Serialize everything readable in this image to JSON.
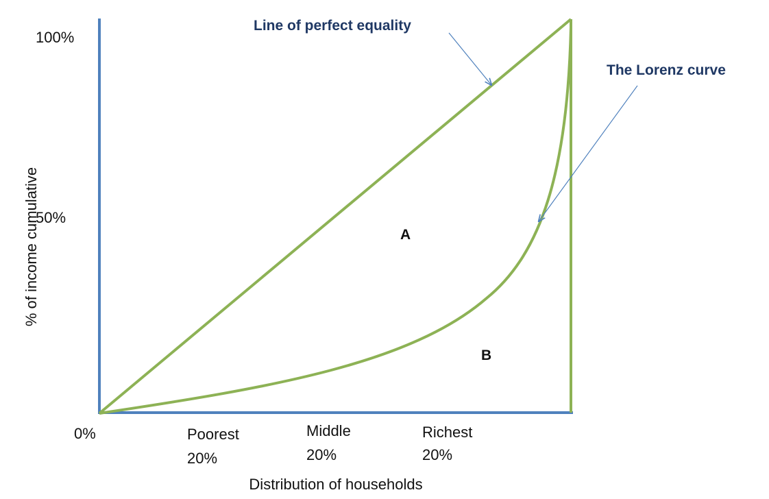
{
  "title_annotations": {
    "equality": "Line of perfect equality",
    "lorenz": "The Lorenz curve"
  },
  "areas": [
    "A",
    "B"
  ],
  "y_axis": {
    "label": "% of income cumulative",
    "ticks": [
      "100%",
      "50%",
      "0%"
    ]
  },
  "x_axis": {
    "label": "Distribution of households",
    "groups": [
      {
        "lines": [
          "Poorest",
          "20%"
        ]
      },
      {
        "lines": [
          "Middle",
          "20%"
        ]
      },
      {
        "lines": [
          "Richest",
          "20%"
        ]
      }
    ]
  }
}
